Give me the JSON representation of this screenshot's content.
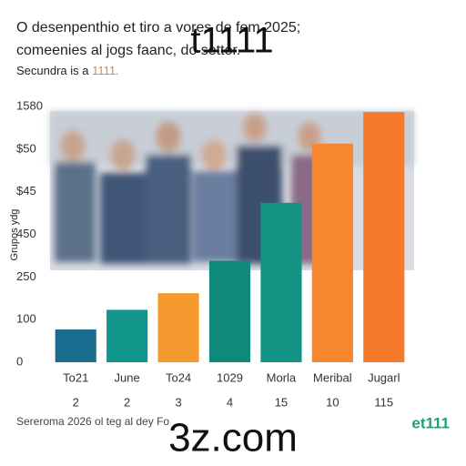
{
  "chart_data": {
    "type": "bar",
    "title": "O desenpenthio et tiro a    vores de fem 2025;",
    "title_line2": "comeenies al jogs faanc,    do settor.",
    "watermark": "t1111",
    "subtitle": "Secundra is a",
    "subtitle_highlight": "1111.",
    "y_label": "Grupos ydg",
    "categories": [
      "To21",
      "June",
      "To24",
      "1029",
      "Morla",
      "Meribal",
      "Jugarl"
    ],
    "sub_labels": [
      "2",
      "2",
      "3",
      "4",
      "15",
      "10",
      "115"
    ],
    "values": [
      0.77,
      1.23,
      1.62,
      2.38,
      3.74,
      5.13,
      5.87
    ],
    "colors": [
      "#1b6d8f",
      "#12958a",
      "#f59a2e",
      "#0f8a7a",
      "#149284",
      "#f7862e",
      "#f77a2a"
    ],
    "ylim": [
      0,
      6
    ],
    "yticks": [
      {
        "value": 0,
        "label": "0"
      },
      {
        "value": 1,
        "label": "100"
      },
      {
        "value": 2,
        "label": "250"
      },
      {
        "value": 3,
        "label": "450"
      },
      {
        "value": 4,
        "label": "$45"
      },
      {
        "value": 5,
        "label": "$50"
      },
      {
        "value": 6,
        "label": "1580"
      }
    ],
    "footer": "Sereroma 2026 ol teg al dey Fo",
    "footer_watermark": "3z.com",
    "logo": "et111"
  }
}
